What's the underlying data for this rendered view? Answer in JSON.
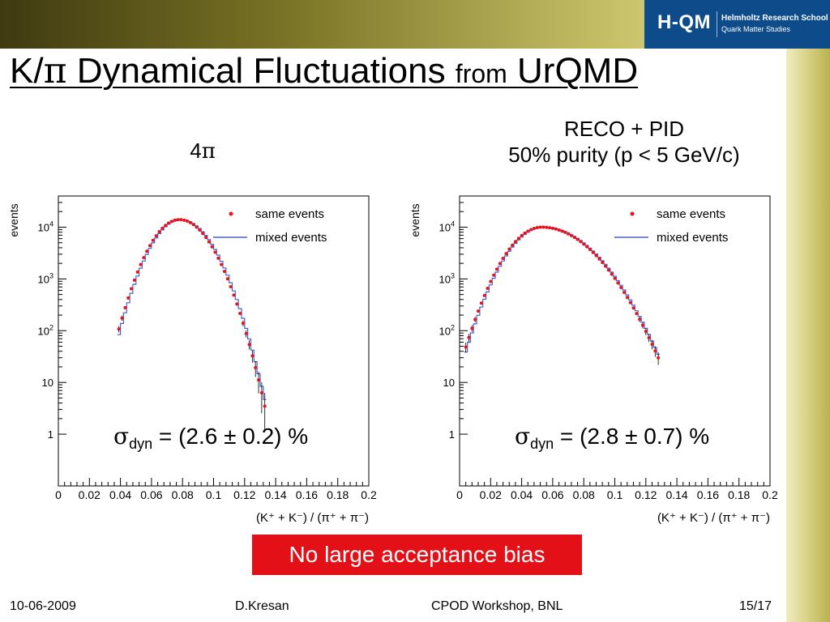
{
  "slide": {
    "title_part1": "K/",
    "title_pi": "π",
    "title_part2": " Dynamical Fluctuations ",
    "title_from": "from",
    "title_part3": " UrQMD",
    "logo_main": "H-QM",
    "logo_sub1": "Helmholtz Research School",
    "logo_sub2": "Quark Matter Studies",
    "left_label_num": "4",
    "left_label_pi": "π",
    "right_label_line1": "RECO + PID",
    "right_label_line2": "50% purity (p < 5 GeV/c)",
    "callout": "No large acceptance bias",
    "footer": {
      "date": "10-06-2009",
      "author": "D.Kresan",
      "event": "CPOD Workshop, BNL",
      "page": "15/17"
    }
  },
  "colors": {
    "same_events": "#e8141c",
    "mixed_events": "#4a5fc8",
    "callout_bg": "#e31018",
    "logo_bg": "#0d4b8a"
  },
  "chart_data": [
    {
      "type": "scatter",
      "panel": "4π",
      "ylabel": "events",
      "xlabel": "(K⁺ + K⁻) / (π⁺ + π⁻)",
      "xlim": [
        0,
        0.2
      ],
      "ylim": [
        0.1,
        40000
      ],
      "yscale": "log",
      "x_ticks": [
        "0",
        "0.02",
        "0.04",
        "0.06",
        "0.08",
        "0.1",
        "0.12",
        "0.14",
        "0.16",
        "0.18",
        "0.2"
      ],
      "y_ticks": [
        "1",
        "10",
        "10²",
        "10³",
        "10⁴"
      ],
      "legend": [
        "same events",
        "mixed events"
      ],
      "legend_position": "top-right",
      "annotation": {
        "prefix": "σ",
        "sub": "dyn",
        "text": " = (2.6 ± 0.2) %"
      },
      "series": [
        {
          "name": "same events",
          "marker": "point",
          "peak_x": 0.078,
          "peak_y": 14000,
          "x_range": [
            0.038,
            0.133
          ],
          "sigma_left": 0.0125,
          "sigma_right": 0.0135
        },
        {
          "name": "mixed events",
          "marker": "line",
          "peak_x": 0.078,
          "peak_y": 14000,
          "x_range": [
            0.038,
            0.133
          ],
          "sigma_left": 0.0125,
          "sigma_right": 0.0135
        }
      ]
    },
    {
      "type": "scatter",
      "panel": "RECO + PID",
      "ylabel": "events",
      "xlabel": "(K⁺ + K⁻) / (π⁺ + π⁻)",
      "xlim": [
        0,
        0.2
      ],
      "ylim": [
        0.1,
        40000
      ],
      "yscale": "log",
      "x_ticks": [
        "0",
        "0.02",
        "0.04",
        "0.06",
        "0.08",
        "0.1",
        "0.12",
        "0.14",
        "0.16",
        "0.18",
        "0.2"
      ],
      "y_ticks": [
        "1",
        "10",
        "10²",
        "10³",
        "10⁴"
      ],
      "legend": [
        "same events",
        "mixed events"
      ],
      "legend_position": "top-right",
      "annotation": {
        "prefix": "σ",
        "sub": "dyn",
        "text": " = (2.8 ± 0.7) %"
      },
      "series": [
        {
          "name": "same events",
          "marker": "point",
          "peak_x": 0.053,
          "peak_y": 10000,
          "x_range": [
            0.003,
            0.128
          ],
          "sigma_left": 0.015,
          "sigma_right": 0.022
        },
        {
          "name": "mixed events",
          "marker": "line",
          "peak_x": 0.053,
          "peak_y": 10000,
          "x_range": [
            0.003,
            0.128
          ],
          "sigma_left": 0.015,
          "sigma_right": 0.022
        }
      ]
    }
  ]
}
